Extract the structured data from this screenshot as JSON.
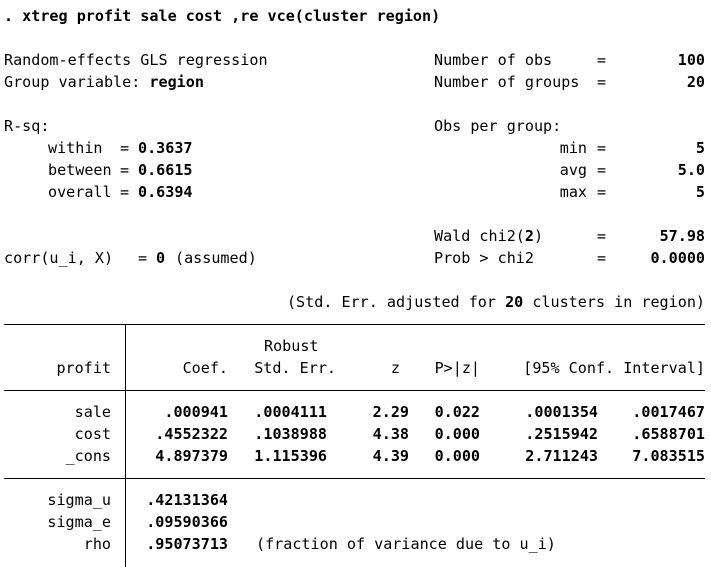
{
  "command": ". xtreg profit sale cost ,re vce(cluster region)",
  "header": {
    "model": "Random-effects GLS regression",
    "group_label": "Group variable: ",
    "group_var": "region",
    "nobs_label": "Number of obs",
    "nobs": "100",
    "ngroups_label": "Number of groups",
    "ngroups": "20",
    "eq": "="
  },
  "rsq": {
    "label": "R-sq:",
    "within_label": "within",
    "within": "0.3637",
    "between_label": "between",
    "between": "0.6615",
    "overall_label": "overall",
    "overall": "0.6394",
    "eq": "="
  },
  "obs_per_group": {
    "label": "Obs per group:",
    "min_label": "min",
    "min": "5",
    "avg_label": "avg",
    "avg": "5.0",
    "max_label": "max",
    "max": "5"
  },
  "wald": {
    "label": "Wald chi2(",
    "df": "2",
    "label_close": ")",
    "value": "57.98",
    "prob_label": "Prob > chi2",
    "prob": "0.0000"
  },
  "corr": {
    "label": "corr(u_i, X)",
    "eq": "=",
    "value": "0",
    "note": "(assumed)"
  },
  "cluster_note": {
    "prefix": "(Std. Err. adjusted for ",
    "n": "20",
    "suffix": " clusters in region)"
  },
  "table": {
    "depvar": "profit",
    "headers": {
      "coef": "Coef.",
      "robust": "Robust",
      "se": "Std. Err.",
      "z": "z",
      "p": "P>|z|",
      "ci": "[95% Conf. Interval]"
    },
    "rows": [
      {
        "var": "sale",
        "coef": ".000941",
        "se": ".0004111",
        "z": "2.29",
        "p": "0.022",
        "lo": ".0001354",
        "hi": ".0017467"
      },
      {
        "var": "cost",
        "coef": ".4552322",
        "se": ".1038988",
        "z": "4.38",
        "p": "0.000",
        "lo": ".2515942",
        "hi": ".6588701"
      },
      {
        "var": "_cons",
        "coef": "4.897379",
        "se": "1.115396",
        "z": "4.39",
        "p": "0.000",
        "lo": "2.711243",
        "hi": "7.083515"
      }
    ],
    "sigma_u_label": "sigma_u",
    "sigma_u": ".42131364",
    "sigma_e_label": "sigma_e",
    "sigma_e": ".09590366",
    "rho_label": "rho",
    "rho": ".95073713",
    "rho_note": "(fraction of variance due to u_i)"
  }
}
